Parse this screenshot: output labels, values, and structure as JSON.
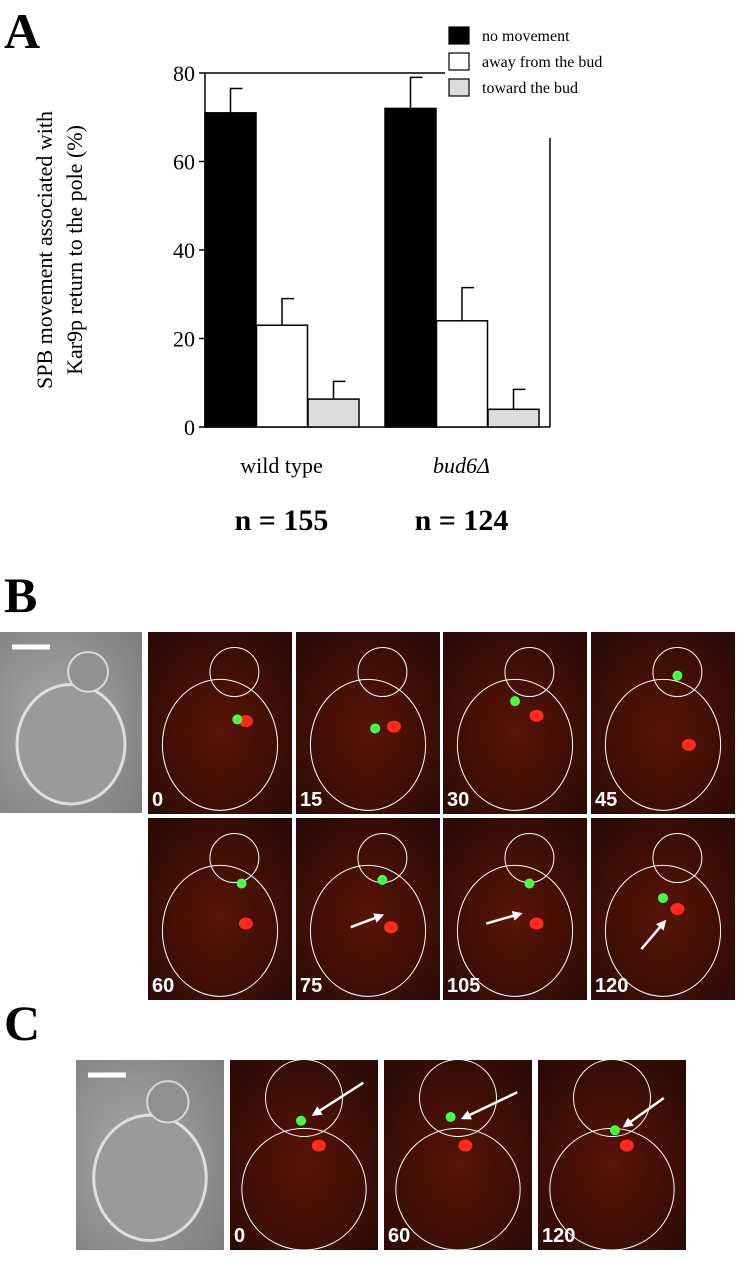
{
  "chart_data": {
    "type": "bar",
    "panel_label": "A",
    "ylabel": [
      "SPB movement associated with",
      "Kar9p return to the pole (%)"
    ],
    "categories": [
      "wild type",
      "bud6Δ"
    ],
    "series": [
      {
        "name": "no movement",
        "color": "#000000",
        "values": [
          71,
          72
        ],
        "errors": [
          5.5,
          7
        ]
      },
      {
        "name": "away from the bud",
        "color": "#ffffff",
        "values": [
          23,
          24
        ],
        "errors": [
          6,
          7.5
        ]
      },
      {
        "name": "toward the bud",
        "color": "#dcdcdc",
        "values": [
          6.3,
          4
        ],
        "errors": [
          4,
          4.5
        ]
      }
    ],
    "ylim": [
      0,
      80
    ],
    "yticks": [
      0,
      20,
      40,
      60,
      80
    ],
    "legend": "upper right",
    "annotations": [
      "n = 155",
      "n = 124"
    ]
  },
  "panel_b": {
    "label": "B",
    "time_labels": [
      "0",
      "15",
      "30",
      "45",
      "60",
      "75",
      "105",
      "120"
    ]
  },
  "panel_c": {
    "label": "C",
    "time_labels": [
      "0",
      "60",
      "120"
    ]
  }
}
